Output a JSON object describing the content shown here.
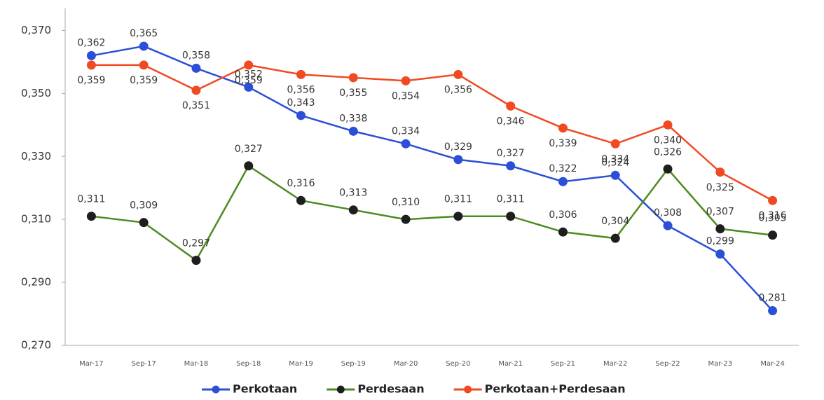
{
  "chart_data": {
    "type": "line",
    "categories": [
      "Mar-17",
      "Sep-17",
      "Mar-18",
      "Sep-18",
      "Mar-19",
      "Sep-19",
      "Mar-20",
      "Sep-20",
      "Mar-21",
      "Sep-21",
      "Mar-22",
      "Sep-22",
      "Mar-23",
      "Mar-24"
    ],
    "series": [
      {
        "name": "Perkotaan",
        "color": "#2b4fd6",
        "marker_color": "#2b4fd6",
        "values": [
          0.362,
          0.365,
          0.358,
          0.352,
          0.343,
          0.338,
          0.334,
          0.329,
          0.327,
          0.322,
          0.324,
          0.308,
          0.299,
          0.281
        ],
        "value_labels": [
          "0,362",
          "0,365",
          "0,358",
          "0,352",
          "0,343",
          "0,338",
          "0,334",
          "0,329",
          "0,327",
          "0,322",
          "0,324",
          "0,308",
          "0,299",
          "0,281"
        ]
      },
      {
        "name": "Perdesaan",
        "color": "#4d8b1f",
        "marker_color": "#1e1e1e",
        "values": [
          0.311,
          0.309,
          0.297,
          0.327,
          0.316,
          0.313,
          0.31,
          0.311,
          0.311,
          0.306,
          0.304,
          0.326,
          0.307,
          0.305
        ],
        "value_labels": [
          "0,311",
          "0,309",
          "0,297",
          "0,327",
          "0,316",
          "0,313",
          "0,310",
          "0,311",
          "0,311",
          "0,306",
          "0,304",
          "0,326",
          "0,307",
          "0,305"
        ]
      },
      {
        "name": "Perkotaan+Perdesaan",
        "color": "#f04a23",
        "marker_color": "#f04a23",
        "values": [
          0.359,
          0.359,
          0.351,
          0.359,
          0.356,
          0.355,
          0.354,
          0.356,
          0.346,
          0.339,
          0.334,
          0.34,
          0.325,
          0.316
        ],
        "value_labels": [
          "0,359",
          "0,359",
          "0,351",
          "0,359",
          "0,356",
          "0,355",
          "0,354",
          "0,356",
          "0,346",
          "0,339",
          "0,334",
          "0,340",
          "0,325",
          "0,316"
        ]
      }
    ],
    "ylim": [
      0.27,
      0.377
    ],
    "yticks": [
      {
        "value": 0.27,
        "label": "0,270"
      },
      {
        "value": 0.29,
        "label": "0,290"
      },
      {
        "value": 0.31,
        "label": "0,310"
      },
      {
        "value": 0.33,
        "label": "0,330"
      },
      {
        "value": 0.35,
        "label": "0,350"
      },
      {
        "value": 0.37,
        "label": "0,370"
      }
    ],
    "grid": false,
    "legend": "bottom"
  }
}
